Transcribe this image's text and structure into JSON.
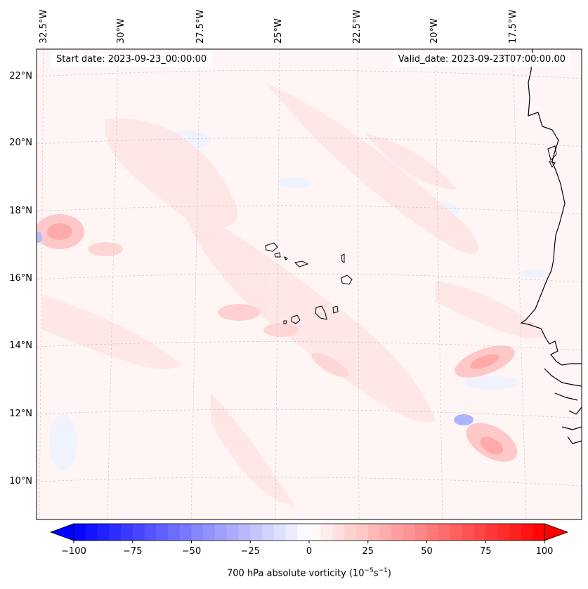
{
  "map": {
    "start_date_label": "Start date: 2023-09-23_00:00:00",
    "valid_date_label": "Valid_date: 2023-09-23T07:00:00.00",
    "lon_labels": [
      "32.5°W",
      "30°W",
      "27.5°W",
      "25°W",
      "22.5°W",
      "20°W",
      "17.5°W"
    ],
    "lat_labels": [
      "22°N",
      "20°N",
      "18°N",
      "16°N",
      "14°N",
      "12°N",
      "10°N"
    ],
    "colors": {
      "background": "#fff5f5",
      "positive": "#ff0000",
      "negative": "#0000ff",
      "coastline": "#000000",
      "gridline": "#c8c8c8"
    }
  },
  "colorbar": {
    "label": "700 hPa absolute vorticity (10",
    "label_exp1": "−5",
    "label_mid": "s",
    "label_exp2": "−1",
    "label_end": ")",
    "ticks": [
      "−100",
      "−75",
      "−50",
      "−25",
      "0",
      "25",
      "50",
      "75",
      "100"
    ],
    "min": -100,
    "max": 100,
    "levels": 40
  }
}
